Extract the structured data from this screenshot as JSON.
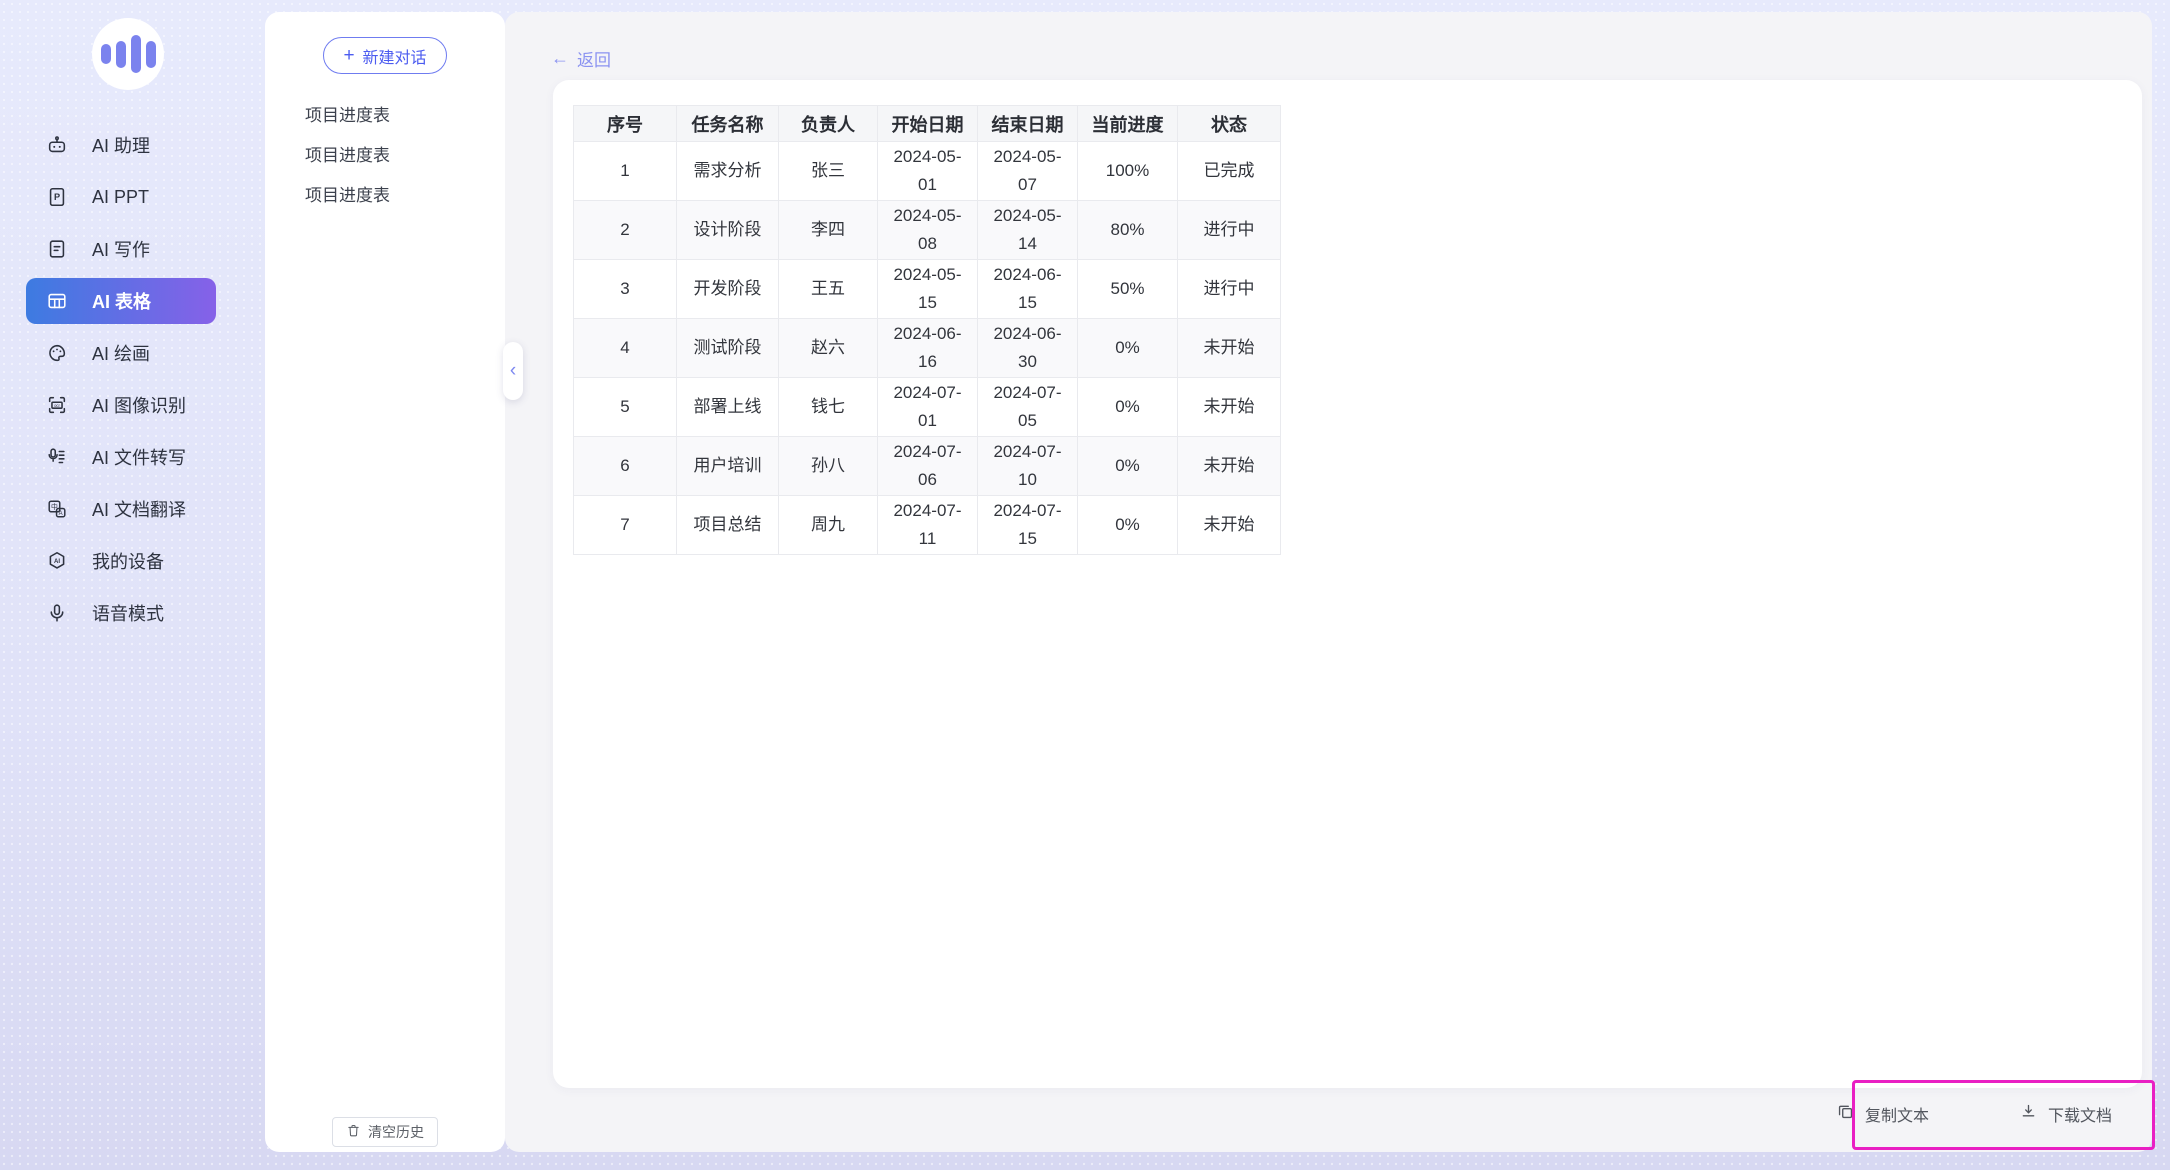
{
  "sidebar": {
    "items": [
      {
        "label": "AI 助理",
        "icon": "robot-icon",
        "active": false
      },
      {
        "label": "AI PPT",
        "icon": "ppt-icon",
        "active": false
      },
      {
        "label": "AI 写作",
        "icon": "writing-icon",
        "active": false
      },
      {
        "label": "AI 表格",
        "icon": "table-icon",
        "active": true
      },
      {
        "label": "AI 绘画",
        "icon": "palette-icon",
        "active": false
      },
      {
        "label": "AI 图像识别",
        "icon": "ocr-icon",
        "active": false
      },
      {
        "label": "AI 文件转写",
        "icon": "transcribe-icon",
        "active": false
      },
      {
        "label": "AI 文档翻译",
        "icon": "translate-icon",
        "active": false
      },
      {
        "label": "我的设备",
        "icon": "device-icon",
        "active": false
      },
      {
        "label": "语音模式",
        "icon": "voice-icon",
        "active": false
      }
    ]
  },
  "conversation_panel": {
    "new_chat_label": "新建对话",
    "plus_icon": "+",
    "history": [
      "项目进度表",
      "项目进度表",
      "项目进度表"
    ],
    "clear_history_label": "清空历史"
  },
  "main": {
    "back_label": "返回",
    "back_arrow": "←",
    "collapse_chevron": "‹",
    "table": {
      "headers": [
        "序号",
        "任务名称",
        "负责人",
        "开始日期",
        "结束日期",
        "当前进度",
        "状态"
      ],
      "rows": [
        [
          "1",
          "需求分析",
          "张三",
          "2024-05-01",
          "2024-05-07",
          "100%",
          "已完成"
        ],
        [
          "2",
          "设计阶段",
          "李四",
          "2024-05-08",
          "2024-05-14",
          "80%",
          "进行中"
        ],
        [
          "3",
          "开发阶段",
          "王五",
          "2024-05-15",
          "2024-06-15",
          "50%",
          "进行中"
        ],
        [
          "4",
          "测试阶段",
          "赵六",
          "2024-06-16",
          "2024-06-30",
          "0%",
          "未开始"
        ],
        [
          "5",
          "部署上线",
          "钱七",
          "2024-07-01",
          "2024-07-05",
          "0%",
          "未开始"
        ],
        [
          "6",
          "用户培训",
          "孙八",
          "2024-07-06",
          "2024-07-10",
          "0%",
          "未开始"
        ],
        [
          "7",
          "项目总结",
          "周九",
          "2024-07-11",
          "2024-07-15",
          "0%",
          "未开始"
        ]
      ]
    },
    "actions": {
      "copy_label": "复制文本",
      "download_label": "下载文档"
    }
  },
  "colors": {
    "accent_blue": "#3d7be1",
    "accent_purple": "#8661e8",
    "link_purple": "#8b93f1",
    "button_purple": "#4c5cf0",
    "annotation_magenta": "#e91fc3",
    "page_lavender": "#e0e3f8",
    "main_gray": "#f4f4f7"
  }
}
